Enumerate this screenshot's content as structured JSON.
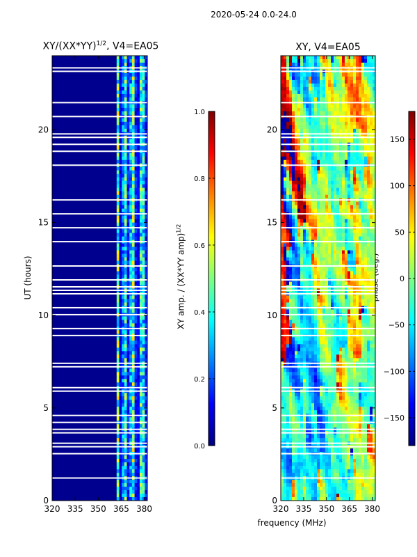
{
  "suptitle": "2020-05-24 0.0-24.0",
  "colors": {
    "background_blue": "#00008f",
    "gap": "#ffffff",
    "jet": [
      "#00007f",
      "#0000ff",
      "#007fff",
      "#00ffff",
      "#7fff7f",
      "#ffff00",
      "#ff7f00",
      "#ff0000",
      "#7f0000"
    ]
  },
  "chart_data": [
    {
      "type": "heatmap",
      "title_main": "XY/(XX*YY)",
      "title_sup": "1/2",
      "title_rest": ", V4=EA05",
      "xlabel": "",
      "ylabel": "UT (hours)",
      "xlim": [
        320,
        382
      ],
      "ylim": [
        0,
        24
      ],
      "xticks": [
        320,
        335,
        350,
        365,
        380
      ],
      "yticks": [
        0,
        5,
        10,
        15,
        20
      ],
      "active_band_mhz": [
        360,
        382
      ],
      "quiet_band_value": 0.0
    },
    {
      "type": "colorbar",
      "label": "XY amp. / (XX*YY amp)",
      "label_sup": "1/2",
      "range": [
        0.0,
        1.0
      ],
      "ticks": [
        "0.0",
        "0.2",
        "0.4",
        "0.6",
        "0.8",
        "1.0"
      ]
    },
    {
      "type": "heatmap",
      "title": "XY, V4=EA05",
      "xlabel": "frequency (MHz)",
      "ylabel": "",
      "xlim": [
        320,
        382
      ],
      "ylim": [
        0,
        24
      ],
      "xticks": [
        320,
        335,
        350,
        365,
        380
      ],
      "yticks": [
        0,
        5,
        10,
        15,
        20
      ]
    },
    {
      "type": "colorbar",
      "label": "phase (deg.)",
      "range": [
        -180,
        180
      ],
      "ticks": [
        "−150",
        "−100",
        "−50",
        "0",
        "50",
        "100",
        "150"
      ]
    }
  ]
}
